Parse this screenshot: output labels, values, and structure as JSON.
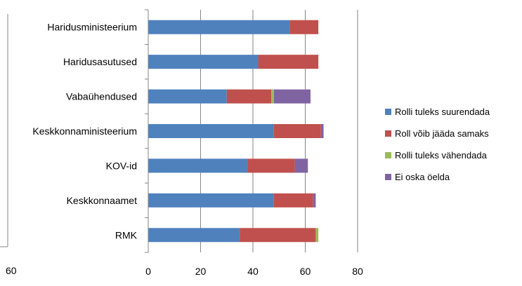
{
  "chart_data": {
    "type": "bar",
    "orientation": "horizontal",
    "stacked": true,
    "title": "",
    "xlabel": "",
    "ylabel": "",
    "categories": [
      "Haridusministeerium",
      "Haridusasutused",
      "Vabaühendused",
      "Keskkonnaministeerium",
      "KOV-id",
      "Keskkonnaamet",
      "RMK"
    ],
    "xlim": [
      0,
      80
    ],
    "xticks": [
      "0",
      "20",
      "40",
      "60",
      "80"
    ],
    "grid": true,
    "legend_position": "right",
    "series": [
      {
        "name": "Rolli tuleks suurendada",
        "color": "#4F81BD",
        "values": [
          54,
          42,
          30,
          48,
          38,
          48,
          35
        ]
      },
      {
        "name": "Roll võib jääda samaks",
        "color": "#C0504D",
        "values": [
          11,
          23,
          17,
          18,
          18,
          15,
          29
        ]
      },
      {
        "name": "Rolli tuleks vähendada",
        "color": "#9BBB59",
        "values": [
          0,
          0,
          1,
          0,
          0,
          0,
          1
        ]
      },
      {
        "name": "Ei oska öelda",
        "color": "#8064A2",
        "values": [
          0,
          0,
          14,
          1,
          5,
          1,
          0
        ]
      }
    ]
  },
  "stray_label": "60"
}
